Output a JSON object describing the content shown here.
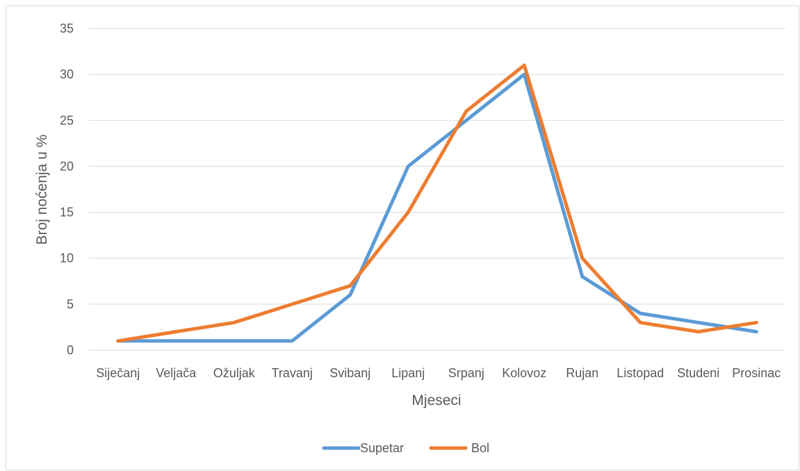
{
  "chart_data": {
    "type": "line",
    "title": "",
    "xlabel": "Mjeseci",
    "ylabel": "Broj noćenja u %",
    "ylim": [
      0,
      35
    ],
    "yticks": [
      0,
      5,
      10,
      15,
      20,
      25,
      30,
      35
    ],
    "grid": "horizontal",
    "legend_position": "bottom",
    "categories": [
      "Siječanj",
      "Veljača",
      "Ožuljak",
      "Travanj",
      "Svibanj",
      "Lipanj",
      "Srpanj",
      "Kolovoz",
      "Rujan",
      "Listopad",
      "Studeni",
      "Prosinac"
    ],
    "series": [
      {
        "name": "Supetar",
        "color": "#5b9bd5",
        "values": [
          1,
          1,
          1,
          1,
          6,
          20,
          25,
          30,
          8,
          4,
          3,
          2
        ]
      },
      {
        "name": "Bol",
        "color": "#ed7d31",
        "values": [
          1,
          2,
          3,
          5,
          7,
          15,
          26,
          31,
          10,
          3,
          2,
          3
        ]
      }
    ]
  }
}
